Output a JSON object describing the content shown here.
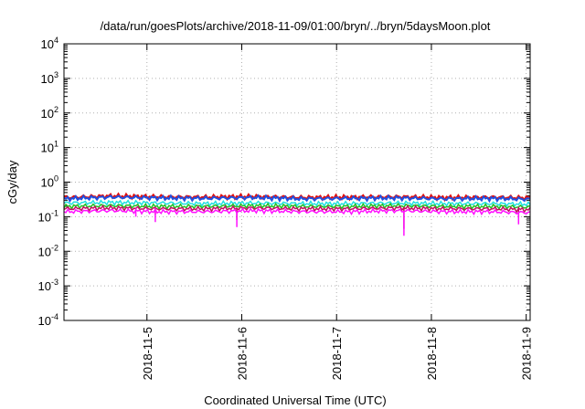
{
  "chart_data": {
    "type": "line",
    "title": "/data/run/goesPlots/archive/2018-11-09/01:00/bryn/../bryn/5daysMoon.plot",
    "xlabel": "Coordinated Universal Time (UTC)",
    "ylabel": "cGy/day",
    "yscale": "log",
    "ylim": [
      0.0001,
      10000
    ],
    "xlim": [
      "2018-11-04 03:00",
      "2018-11-09 01:00"
    ],
    "x_ticks": [
      "2018-11-5",
      "2018-11-6",
      "2018-11-7",
      "2018-11-8",
      "2018-11-9"
    ],
    "y_ticks": [
      {
        "base": "10",
        "exp": "-4"
      },
      {
        "base": "10",
        "exp": "-3"
      },
      {
        "base": "10",
        "exp": "-2"
      },
      {
        "base": "10",
        "exp": "-1"
      },
      {
        "base": "10",
        "exp": "0"
      },
      {
        "base": "10",
        "exp": "1"
      },
      {
        "base": "10",
        "exp": "2"
      },
      {
        "base": "10",
        "exp": "3"
      },
      {
        "base": "10",
        "exp": "4"
      }
    ],
    "grid": true,
    "x": [
      "2018-11-04 03:00",
      "2018-11-04 15:00",
      "2018-11-05 03:00",
      "2018-11-05 15:00",
      "2018-11-06 03:00",
      "2018-11-06 15:00",
      "2018-11-07 03:00",
      "2018-11-07 15:00",
      "2018-11-08 03:00",
      "2018-11-08 15:00",
      "2018-11-09 01:00"
    ],
    "series": [
      {
        "color": "#e01010",
        "values": [
          0.36,
          0.4,
          0.38,
          0.37,
          0.39,
          0.36,
          0.37,
          0.38,
          0.36,
          0.37,
          0.35
        ]
      },
      {
        "color": "#2050e0",
        "values": [
          0.33,
          0.37,
          0.35,
          0.34,
          0.36,
          0.33,
          0.34,
          0.35,
          0.33,
          0.34,
          0.32
        ]
      },
      {
        "color": "#20e0e0",
        "values": [
          0.25,
          0.26,
          0.25,
          0.24,
          0.25,
          0.24,
          0.24,
          0.25,
          0.24,
          0.24,
          0.23
        ]
      },
      {
        "color": "#20c020",
        "values": [
          0.2,
          0.21,
          0.2,
          0.2,
          0.21,
          0.2,
          0.2,
          0.21,
          0.2,
          0.2,
          0.19
        ]
      },
      {
        "color": "#c01060",
        "values": [
          0.17,
          0.18,
          0.17,
          0.17,
          0.18,
          0.17,
          0.17,
          0.18,
          0.17,
          0.17,
          0.16
        ]
      },
      {
        "color": "#ff10ff",
        "values": [
          0.14,
          0.15,
          0.14,
          0.14,
          0.15,
          0.14,
          0.14,
          0.15,
          0.14,
          0.14,
          0.13
        ]
      }
    ],
    "dips": [
      {
        "x": "2018-11-04 21:00",
        "value": 0.1
      },
      {
        "x": "2018-11-05 02:00",
        "value": 0.07
      },
      {
        "x": "2018-11-05 23:00",
        "value": 0.05
      },
      {
        "x": "2018-11-07 17:00",
        "value": 0.028
      },
      {
        "x": "2018-11-08 22:00",
        "value": 0.06
      }
    ]
  }
}
